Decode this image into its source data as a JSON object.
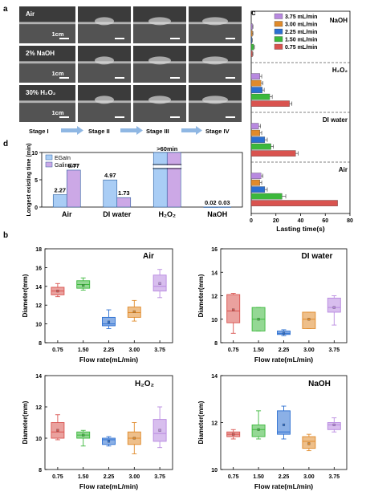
{
  "panel_letters": {
    "a": "a",
    "b": "b",
    "c": "c",
    "d": "d"
  },
  "panel_a": {
    "rows": [
      {
        "label": "Air",
        "scale": "1cm"
      },
      {
        "label": "2% NaOH",
        "scale": "1cm"
      },
      {
        "label": "30% H₂O₂",
        "scale": "1cm"
      }
    ],
    "stages": [
      "Stage I",
      "Stage II",
      "Stage III",
      "Stage IV"
    ]
  },
  "colors": {
    "0.75": "#d9534f",
    "1.50": "#3cb83c",
    "2.25": "#2b6fd1",
    "3.00": "#e08a2a",
    "3.75": "#b889e0",
    "egain": "#a9cdf5",
    "galinstan": "#cca8e6"
  },
  "chart_data": [
    {
      "id": "d",
      "type": "bar",
      "ylabel": "Longest existing time (min)",
      "categories": [
        "Air",
        "DI water",
        "H₂O₂",
        "NaOH"
      ],
      "ylim": [
        0,
        10
      ],
      "yticks": [
        "0",
        "5",
        "10"
      ],
      "series": [
        {
          "name": "EGaIn",
          "values": [
            2.27,
            4.97,
            10,
            0.02
          ],
          "labels": [
            "2.27",
            "4.97",
            "",
            "0.02"
          ]
        },
        {
          "name": "Galinstan",
          "values": [
            6.77,
            1.73,
            10,
            0.03
          ],
          "labels": [
            "6.77",
            "1.73",
            "",
            "0.03"
          ]
        }
      ],
      "annotation": ">60min",
      "legend": "top-left"
    },
    {
      "id": "c",
      "type": "bar",
      "orientation": "horizontal",
      "xlabel": "Lasting time(s)",
      "xlim": [
        0,
        80
      ],
      "xticks": [
        "0",
        "20",
        "40",
        "60",
        "80"
      ],
      "legend_series": [
        "3.75 mL/min",
        "3.00 mL/min",
        "2.25 mL/min",
        "1.50 mL/min",
        "0.75 mL/min"
      ],
      "groups": [
        {
          "name": "NaOH",
          "values": [
            1,
            1,
            0.6,
            2,
            1
          ],
          "errors": [
            0.4,
            0.4,
            0.3,
            0.6,
            0.4
          ]
        },
        {
          "name": "H₂O₂",
          "values": [
            7,
            8,
            9,
            15,
            31
          ],
          "errors": [
            1.5,
            1.5,
            1.5,
            2,
            2
          ]
        },
        {
          "name": "DI water",
          "values": [
            6,
            7,
            11,
            16,
            36
          ],
          "errors": [
            1.5,
            1.5,
            2,
            2,
            2
          ]
        },
        {
          "name": "Air",
          "values": [
            8,
            7,
            11,
            25,
            70
          ],
          "errors": [
            1.5,
            1.5,
            2,
            3,
            0
          ]
        }
      ],
      "legend": "top-right"
    },
    {
      "id": "b-air",
      "type": "box",
      "title": "Air",
      "xlabel": "Flow rate(mL/min)",
      "ylabel": "Diameter(mm)",
      "categories": [
        "0.75",
        "1.50",
        "2.25",
        "3.00",
        "3.75"
      ],
      "ylim": [
        8,
        18
      ],
      "yticks": [
        "8",
        "10",
        "12",
        "14",
        "16",
        "18"
      ],
      "boxes": [
        {
          "min": 12.9,
          "q1": 13.1,
          "median": 13.5,
          "q3": 13.9,
          "max": 14.3,
          "mean": 13.5
        },
        {
          "min": 13.6,
          "q1": 13.8,
          "median": 14.2,
          "q3": 14.6,
          "max": 14.9,
          "mean": 14.1
        },
        {
          "min": 9.5,
          "q1": 9.8,
          "median": 10.0,
          "q3": 10.7,
          "max": 11.5,
          "mean": 10.2
        },
        {
          "min": 10.3,
          "q1": 10.7,
          "median": 11.2,
          "q3": 11.8,
          "max": 12.5,
          "mean": 11.3
        },
        {
          "min": 12.8,
          "q1": 13.5,
          "median": 14.0,
          "q3": 15.2,
          "max": 15.8,
          "mean": 14.3
        }
      ]
    },
    {
      "id": "b-di",
      "type": "box",
      "title": "DI water",
      "xlabel": "Flow rate(mL/min)",
      "ylabel": "Diameter(mm)",
      "categories": [
        "0.75",
        "1.50",
        "2.25",
        "3.00",
        "3.75"
      ],
      "ylim": [
        8,
        16
      ],
      "yticks": [
        "8",
        "10",
        "12",
        "14",
        "16"
      ],
      "boxes": [
        {
          "min": 8.8,
          "q1": 9.7,
          "median": 10.7,
          "q3": 12.1,
          "max": 12.2,
          "mean": 10.8
        },
        {
          "min": 9.0,
          "q1": 9.0,
          "median": 10.0,
          "q3": 11.0,
          "max": 11.0,
          "mean": 10.0
        },
        {
          "min": 8.6,
          "q1": 8.7,
          "median": 8.8,
          "q3": 9.0,
          "max": 9.1,
          "mean": 8.8
        },
        {
          "min": 9.2,
          "q1": 9.2,
          "median": 10.0,
          "q3": 10.6,
          "max": 10.6,
          "mean": 10.0
        },
        {
          "min": 9.5,
          "q1": 10.6,
          "median": 11.0,
          "q3": 11.8,
          "max": 12.0,
          "mean": 11.0
        }
      ]
    },
    {
      "id": "b-h2o2",
      "type": "box",
      "title": "H₂O₂",
      "xlabel": "Flow rate(mL/min)",
      "ylabel": "Diameter(mm)",
      "categories": [
        "0.75",
        "1.50",
        "2.25",
        "3.00",
        "3.75"
      ],
      "ylim": [
        8,
        14
      ],
      "yticks": [
        "8",
        "10",
        "12",
        "14"
      ],
      "boxes": [
        {
          "min": 9.9,
          "q1": 10.0,
          "median": 10.4,
          "q3": 11.0,
          "max": 11.5,
          "mean": 10.5
        },
        {
          "min": 9.5,
          "q1": 10.0,
          "median": 10.2,
          "q3": 10.4,
          "max": 10.5,
          "mean": 10.2
        },
        {
          "min": 9.5,
          "q1": 9.6,
          "median": 9.9,
          "q3": 10.0,
          "max": 10.1,
          "mean": 9.8
        },
        {
          "min": 9.0,
          "q1": 9.6,
          "median": 10.0,
          "q3": 10.4,
          "max": 11.0,
          "mean": 10.0
        },
        {
          "min": 9.4,
          "q1": 9.8,
          "median": 10.3,
          "q3": 11.2,
          "max": 12.0,
          "mean": 10.5
        }
      ]
    },
    {
      "id": "b-naoh",
      "type": "box",
      "title": "NaOH",
      "xlabel": "Flow rate(mL/min)",
      "ylabel": "Diameter(mm)",
      "categories": [
        "0.75",
        "1.50",
        "2.25",
        "3.00",
        "3.75"
      ],
      "ylim": [
        10,
        14
      ],
      "yticks": [
        "10",
        "12",
        "14"
      ],
      "boxes": [
        {
          "min": 11.3,
          "q1": 11.4,
          "median": 11.5,
          "q3": 11.6,
          "max": 11.7,
          "mean": 11.5
        },
        {
          "min": 11.3,
          "q1": 11.4,
          "median": 11.7,
          "q3": 11.9,
          "max": 12.5,
          "mean": 11.7
        },
        {
          "min": 11.3,
          "q1": 11.5,
          "median": 11.6,
          "q3": 12.5,
          "max": 12.7,
          "mean": 11.9
        },
        {
          "min": 10.8,
          "q1": 10.9,
          "median": 11.2,
          "q3": 11.4,
          "max": 11.5,
          "mean": 11.1
        },
        {
          "min": 11.6,
          "q1": 11.7,
          "median": 11.9,
          "q3": 12.0,
          "max": 12.2,
          "mean": 11.9
        }
      ]
    }
  ]
}
